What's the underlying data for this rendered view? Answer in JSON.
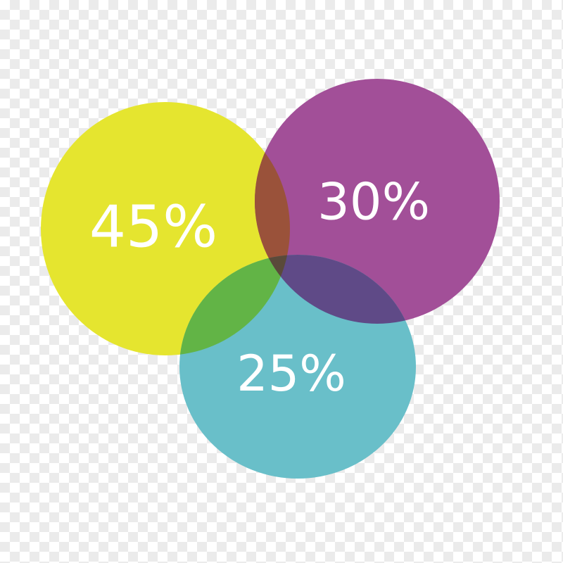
{
  "circles": [
    {
      "label": "45%",
      "color": "#e5e52f"
    },
    {
      "label": "30%",
      "color": "#a24f98"
    },
    {
      "label": "25%",
      "color": "#69bfc9"
    }
  ],
  "overlap_colors": {
    "yellow_purple": "#9a523a",
    "yellow_teal": "#62b446",
    "purple_teal": "#5f4a87",
    "all": "#5a4a3a"
  }
}
